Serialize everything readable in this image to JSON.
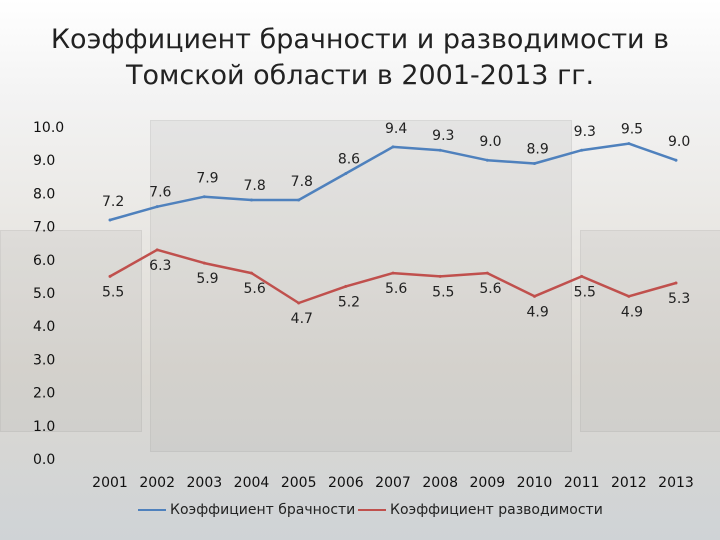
{
  "title": "Коэффициент брачности и разводимости в Томской области в 2001-2013 гг.",
  "chart_data": {
    "type": "line",
    "x": [
      "2001",
      "2002",
      "2003",
      "2004",
      "2005",
      "2006",
      "2007",
      "2008",
      "2009",
      "2010",
      "2011",
      "2012",
      "2013"
    ],
    "ylim": [
      0,
      10
    ],
    "yticks": [
      "0.0",
      "1.0",
      "2.0",
      "3.0",
      "4.0",
      "5.0",
      "6.0",
      "7.0",
      "8.0",
      "9.0",
      "10.0"
    ],
    "legend_position": "bottom",
    "series": [
      {
        "name": "Коэффициент брачности",
        "color": "#4f81bd",
        "values": [
          7.2,
          7.6,
          7.9,
          7.8,
          7.8,
          8.6,
          9.4,
          9.3,
          9.0,
          8.9,
          9.3,
          9.5,
          9.0
        ],
        "labels": [
          "7.2",
          "7.6",
          "7.9",
          "7.8",
          "7.8",
          "8.6",
          "9.4",
          "9.3",
          "9.0",
          "8.9",
          "9.3",
          "9.5",
          "9.0"
        ]
      },
      {
        "name": "Коэффициент разводимости",
        "color": "#c0504d",
        "values": [
          5.5,
          6.3,
          5.9,
          5.6,
          4.7,
          5.2,
          5.6,
          5.5,
          5.6,
          4.9,
          5.5,
          4.9,
          5.3
        ],
        "labels": [
          "5.5",
          "6.3",
          "5.9",
          "5.6",
          "4.7",
          "5.2",
          "5.6",
          "5.5",
          "5.6",
          "4.9",
          "5.5",
          "4.9",
          "5.3"
        ]
      }
    ]
  }
}
